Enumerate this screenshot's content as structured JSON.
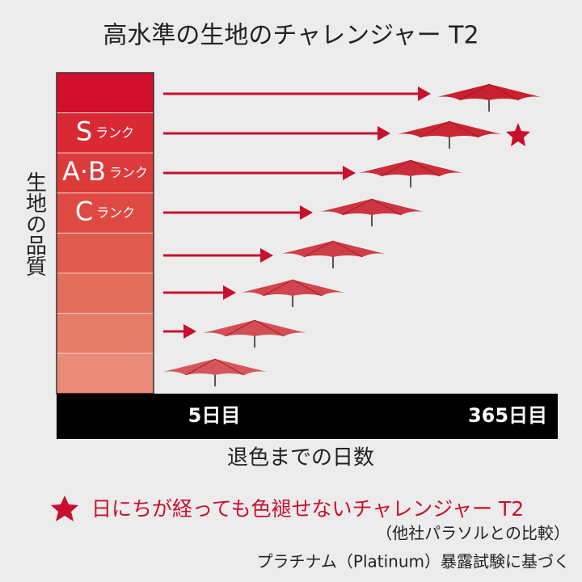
{
  "title": "高水準の生地のチャレンジャー T2",
  "y_axis_label": "生地の品質",
  "ranks": [
    {
      "letter": "S",
      "suffix": "ランク"
    },
    {
      "letter": "A·B",
      "suffix": "ランク"
    },
    {
      "letter": "C",
      "suffix": "ランク"
    }
  ],
  "x_axis": {
    "start_label": "5日目",
    "end_label": "365日目",
    "label": "退色までの日数"
  },
  "footer": {
    "claim": "日にちが経っても色褪せないチャレンジャー T2",
    "comparison": "（他社パラソルとの比較）",
    "basis": "プラチナム（Platinum）暴露試験に基づく"
  }
}
